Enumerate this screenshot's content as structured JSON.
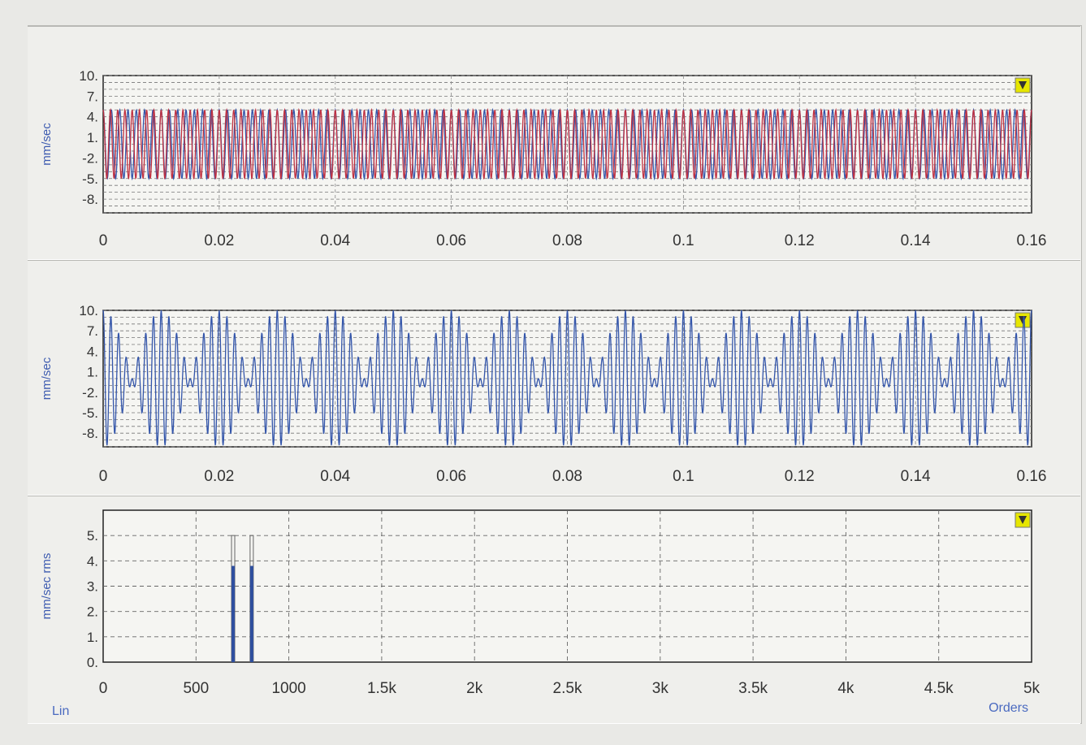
{
  "toolbar": {
    "grid_icon": "grid-icon",
    "cursor_icon": "cursor-icon"
  },
  "chart_data": [
    {
      "type": "line",
      "ylabel": "mm/sec",
      "ylim": [
        -10,
        10
      ],
      "yticks": [
        "10.",
        "7.",
        "4.",
        "1.",
        "-2.",
        "-5.",
        "-8."
      ],
      "xlim": [
        0,
        0.16
      ],
      "xticks": [
        "0",
        "0.02",
        "0.04",
        "0.06",
        "0.08",
        "0.1",
        "0.12",
        "0.14",
        "0.16"
      ],
      "grid": true,
      "series": [
        {
          "color": "#3355aa",
          "amplitude": 5,
          "frequency_hz": 700
        },
        {
          "color": "#c03040",
          "amplitude": 5,
          "frequency_hz": 800
        }
      ]
    },
    {
      "type": "line",
      "ylabel": "mm/sec",
      "ylim": [
        -10,
        10
      ],
      "yticks": [
        "10.",
        "7.",
        "4.",
        "1.",
        "-2.",
        "-5.",
        "-8."
      ],
      "xlim": [
        0,
        0.16
      ],
      "xticks": [
        "0",
        "0.02",
        "0.04",
        "0.06",
        "0.08",
        "0.1",
        "0.12",
        "0.14",
        "0.16"
      ],
      "grid": true,
      "series": [
        {
          "color": "#3355aa",
          "components": [
            {
              "amplitude": 5,
              "frequency_hz": 700
            },
            {
              "amplitude": 5,
              "frequency_hz": 800
            }
          ]
        }
      ]
    },
    {
      "type": "bar",
      "ylabel": "mm/sec rms",
      "ylim": [
        0,
        6
      ],
      "yticks": [
        "5.",
        "4.",
        "3.",
        "2.",
        "1.",
        "0."
      ],
      "xlim": [
        0,
        5000
      ],
      "xticks": [
        "0",
        "500",
        "1000",
        "1.5k",
        "2k",
        "2.5k",
        "3k",
        "3.5k",
        "4k",
        "4.5k",
        "5k"
      ],
      "x": [
        700,
        800
      ],
      "values": [
        3.8,
        3.8
      ],
      "peak_outline": [
        5,
        5
      ],
      "grid": true,
      "scale_label": "Lin",
      "xlabel": "Orders"
    }
  ]
}
